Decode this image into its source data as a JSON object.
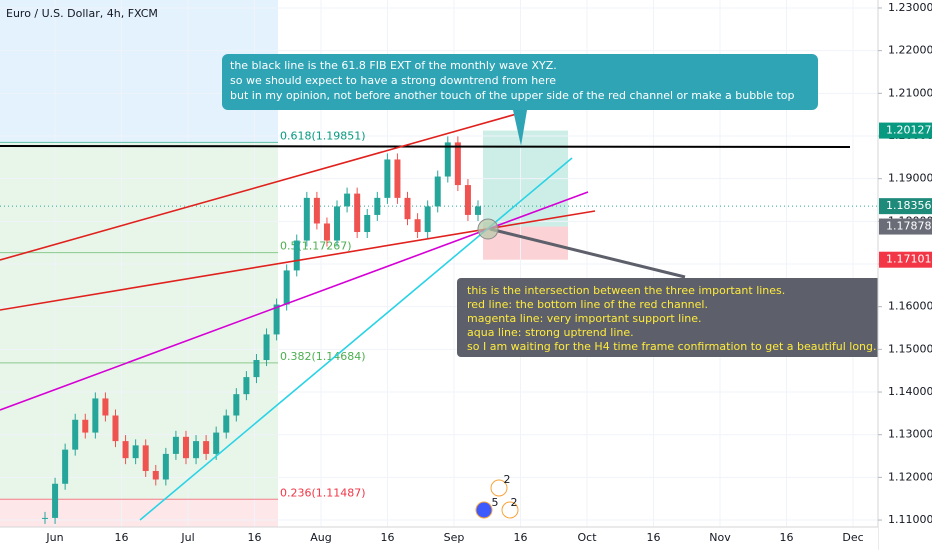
{
  "chart_data": {
    "type": "candlestick",
    "title": "Euro / U.S. Dollar, 4h, FXCM",
    "closes": [
      1.1105,
      1.1185,
      1.1265,
      1.1335,
      1.1305,
      1.1385,
      1.1345,
      1.1285,
      1.1245,
      1.1275,
      1.1215,
      1.1195,
      1.1255,
      1.1295,
      1.1245,
      1.1285,
      1.1255,
      1.1305,
      1.1345,
      1.1395,
      1.1435,
      1.1475,
      1.1535,
      1.1605,
      1.1685,
      1.1755,
      1.1855,
      1.1795,
      1.1755,
      1.1835,
      1.1865,
      1.1775,
      1.1815,
      1.1855,
      1.1945,
      1.1855,
      1.1805,
      1.1775,
      1.1835,
      1.1905,
      1.1985,
      1.1885,
      1.1815,
      1.1835
    ],
    "candle_colors": {
      "up": "#26a69a",
      "down": "#ef5350"
    },
    "ylim": [
      1.10837,
      1.23187
    ],
    "yticks": [
      {
        "value": 1.11,
        "label": "1.11000"
      },
      {
        "value": 1.12,
        "label": "1.12000"
      },
      {
        "value": 1.13,
        "label": "1.13000"
      },
      {
        "value": 1.14,
        "label": "1.14000"
      },
      {
        "value": 1.15,
        "label": "1.15000"
      },
      {
        "value": 1.16,
        "label": "1.16000"
      },
      {
        "value": 1.17,
        "label": "1.17000"
      },
      {
        "value": 1.18,
        "label": "1.18000"
      },
      {
        "value": 1.19,
        "label": "1.19000"
      },
      {
        "value": 1.2,
        "label": "1.20000"
      },
      {
        "value": 1.21,
        "label": "1.21000"
      },
      {
        "value": 1.22,
        "label": "1.22000"
      },
      {
        "value": 1.23,
        "label": "1.23000"
      }
    ],
    "x_labels": [
      "Jun",
      "16",
      "Jul",
      "16",
      "Aug",
      "16",
      "Sep",
      "16",
      "Oct",
      "16",
      "Nov",
      "16",
      "Dec"
    ],
    "fib_levels": [
      {
        "value": 1.19851,
        "label": "0.618(1.19851)",
        "color": "#089981"
      },
      {
        "value": 1.17267,
        "label": "0.5(1.17267)",
        "color": "#4caf50"
      },
      {
        "value": 1.14684,
        "label": "0.382(1.14684)",
        "color": "#4caf50"
      },
      {
        "value": 1.11487,
        "label": "0.236(1.11487)",
        "color": "#f23645"
      }
    ],
    "price_labels": [
      {
        "value": 1.20127,
        "label": "1.20127",
        "color": "#089981"
      },
      {
        "value": 1.18356,
        "label": "1.18356",
        "color": "#1e8a7a"
      },
      {
        "value": 1.17878,
        "label": "1.17878",
        "color": "#6a6d78"
      },
      {
        "value": 1.17101,
        "label": "1.17101",
        "color": "#f23645"
      }
    ],
    "event_badges": [
      "2",
      "5",
      "2"
    ],
    "callout_top": [
      "the black line is the 61.8 FIB EXT of the monthly wave XYZ.",
      "so we should expect to have a strong downtrend from here",
      "but in my opinion, not before another touch of the upper side of the red channel or make a bubble top"
    ],
    "callout_bottom": [
      "this is the intersection between the three important lines.",
      "red line: the bottom line of the red channel.",
      "magenta line: very important support line.",
      "aqua line: strong uptrend line.",
      "so I am waiting for the H4 time frame confirmation to get a beautiful long."
    ]
  }
}
